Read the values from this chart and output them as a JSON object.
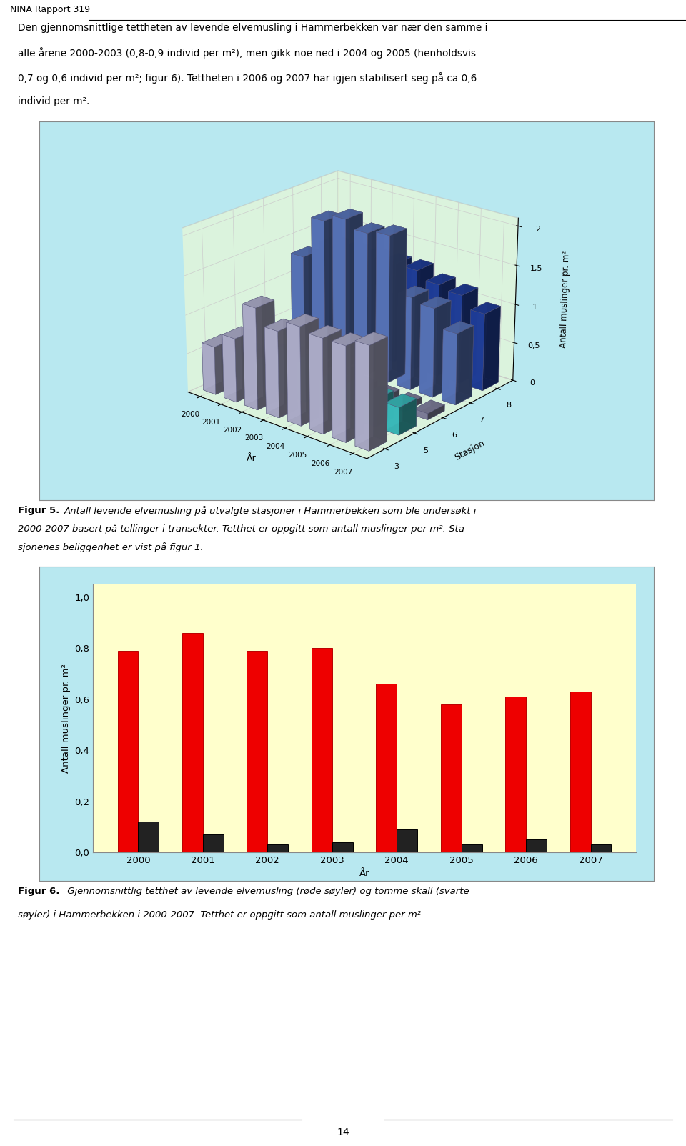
{
  "fig5": {
    "ylabel": "Antall muslinger pr. m²",
    "xlabel": "År",
    "stasjon_label": "Stasjon",
    "years": [
      2000,
      2001,
      2002,
      2003,
      2004,
      2005,
      2006,
      2007
    ],
    "stations": [
      3,
      5,
      6,
      7,
      8
    ],
    "data": {
      "3": [
        0.62,
        0.82,
        1.3,
        1.1,
        1.25,
        1.2,
        1.2,
        1.3
      ],
      "5": [
        0.35,
        0.3,
        0.55,
        0.5,
        0.35,
        0.35,
        0.35,
        0.35
      ],
      "6": [
        0.15,
        0.2,
        0.2,
        0.2,
        0.1,
        0.08,
        0.08,
        0.08
      ],
      "7": [
        1.3,
        1.85,
        1.95,
        1.85,
        1.9,
        1.2,
        1.15,
        0.92
      ],
      "8": [
        1.3,
        1.3,
        1.3,
        1.3,
        1.3,
        1.2,
        1.15,
        1.0
      ]
    },
    "station_colors": {
      "3": "#c0c0e0",
      "5": "#40d0d0",
      "6": "#9090b0",
      "7": "#6080cc",
      "8": "#2244aa"
    },
    "ylim": [
      0,
      2.1
    ],
    "yticks": [
      0,
      0.5,
      1,
      1.5,
      2
    ],
    "ytick_labels": [
      "0",
      "0,5",
      "1",
      "1,5",
      "2"
    ],
    "bg_outer": "#b8e8f0",
    "bg_wall": "#ffffcc",
    "bg_floor": "#ffffaa",
    "elev": 22,
    "azim": -50
  },
  "fig6": {
    "ylabel": "Antall muslinger pr. m²",
    "xlabel": "År",
    "years": [
      2000,
      2001,
      2002,
      2003,
      2004,
      2005,
      2006,
      2007
    ],
    "red_values": [
      0.79,
      0.86,
      0.79,
      0.8,
      0.66,
      0.58,
      0.61,
      0.63
    ],
    "black_values": [
      0.12,
      0.07,
      0.03,
      0.04,
      0.09,
      0.03,
      0.05,
      0.03
    ],
    "red_color": "#ee0000",
    "black_color": "#222222",
    "ylim": [
      0,
      1.05
    ],
    "yticks": [
      0.0,
      0.2,
      0.4,
      0.6,
      0.8,
      1.0
    ],
    "ytick_labels": [
      "0,0",
      "0,2",
      "0,4",
      "0,6",
      "0,8",
      "1,0"
    ],
    "bg_outer": "#b8e8f0",
    "bg_inner": "#ffffcc"
  },
  "page_header": "NINA Rapport 319",
  "text_lines": [
    "Den gjennomsnittlige tettheten av levende elvemusling i Hammerbekken var nær den samme i",
    "alle årene 2000-2003 (0,8-0,9 individ per m²), men gikk noe ned i 2004 og 2005 (henholdsvis",
    "0,7 og 0,6 individ per m²; figur 6). Tettheten i 2006 og 2007 har igjen stabilisert seg på ca 0,6",
    "individ per m²."
  ],
  "caption5_bold": "Figur 5.",
  "caption5_italic": " Antall levende elvemusling på utvalgte stasjoner i Hammerbekken som ble undersøkt i 2000-2007 basert på tellinger i transekter. Tetthet er oppgitt som antall muslinger per m². Sta-sjonenes beliggenhet er vist på ",
  "caption5_bold2": "figur 1",
  "caption5_end": ".",
  "caption5_lines": [
    "Antall levende elvemusling på utvalgte stasjoner i Hammerbekken som ble undersøkt i",
    "2000-2007 basert på tellinger i transekter. Tetthet er oppgitt som antall muslinger per m². Sta-",
    "sjonenes beliggenhet er vist på figur 1."
  ],
  "caption6_bold": "Figur 6.",
  "caption6_lines": [
    " Gjennomsnittlig tetthet av levende elvemusling (røde søyler) og tomme skall (svarte",
    "søyler) i Hammerbekken i 2000-2007. Tetthet er oppgitt som antall muslinger per m²."
  ],
  "page_number": "14"
}
